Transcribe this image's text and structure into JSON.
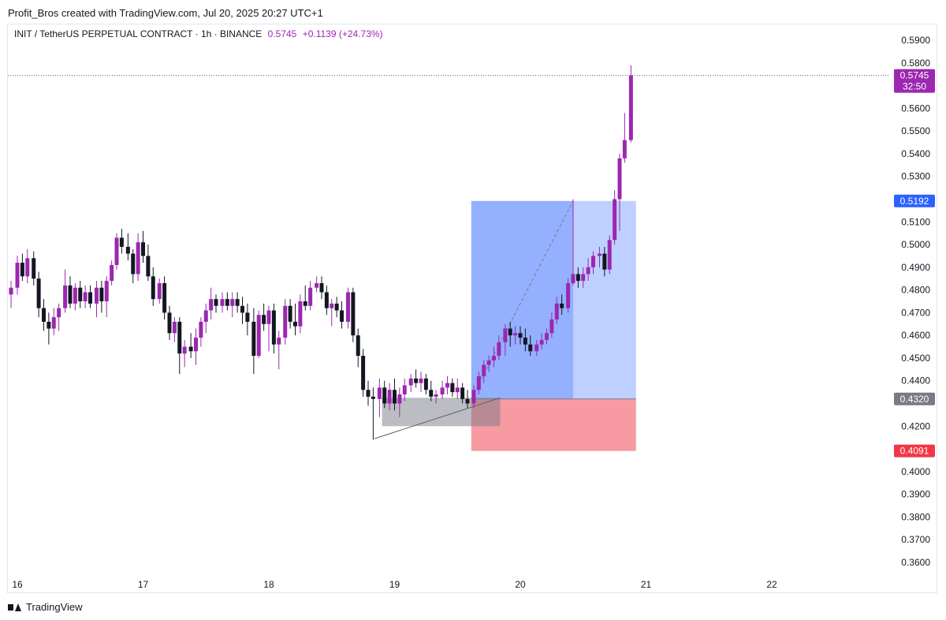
{
  "header": {
    "text": "Profit_Bros created with TradingView.com, Jul 20, 2025 20:27 UTC+1"
  },
  "legend": {
    "symbol": "INIT / TetherUS PERPETUAL CONTRACT · 1h · BINANCE",
    "price": "0.5745",
    "change": "+0.1139 (+24.73%)"
  },
  "footer": {
    "brand": "TradingView"
  },
  "colors": {
    "up": "#9c27b0",
    "down": "#131722",
    "target": "#2962ff",
    "stop": "#f23645",
    "entry": "#787b86"
  },
  "chart_data": {
    "type": "candlestick",
    "title": "",
    "xlabel": "",
    "ylabel": "",
    "ylim": [
      0.355,
      0.592
    ],
    "xlim": [
      16.0,
      23.05
    ],
    "x_ticks": [
      {
        "x": 16,
        "label": "16"
      },
      {
        "x": 17,
        "label": "17"
      },
      {
        "x": 18,
        "label": "18"
      },
      {
        "x": 19,
        "label": "19"
      },
      {
        "x": 20,
        "label": "20"
      },
      {
        "x": 21,
        "label": "21"
      },
      {
        "x": 22,
        "label": "22"
      }
    ],
    "y_ticks": [
      "0.5900",
      "0.5800",
      "0.5600",
      "0.5500",
      "0.5400",
      "0.5300",
      "0.5100",
      "0.5000",
      "0.4900",
      "0.4800",
      "0.4700",
      "0.4600",
      "0.4500",
      "0.4400",
      "0.4200",
      "0.4000",
      "0.3900",
      "0.3800",
      "0.3700",
      "0.3600"
    ],
    "candle_interval_days": 0.0417,
    "candles": [
      {
        "x": 15.95,
        "o": 0.478,
        "h": 0.484,
        "l": 0.472,
        "c": 0.481
      },
      {
        "x": 16.0,
        "o": 0.481,
        "h": 0.495,
        "l": 0.478,
        "c": 0.492
      },
      {
        "x": 16.04,
        "o": 0.492,
        "h": 0.496,
        "l": 0.484,
        "c": 0.486
      },
      {
        "x": 16.08,
        "o": 0.486,
        "h": 0.498,
        "l": 0.483,
        "c": 0.494
      },
      {
        "x": 16.13,
        "o": 0.494,
        "h": 0.497,
        "l": 0.482,
        "c": 0.485
      },
      {
        "x": 16.17,
        "o": 0.485,
        "h": 0.488,
        "l": 0.468,
        "c": 0.472
      },
      {
        "x": 16.21,
        "o": 0.472,
        "h": 0.476,
        "l": 0.462,
        "c": 0.466
      },
      {
        "x": 16.25,
        "o": 0.466,
        "h": 0.47,
        "l": 0.456,
        "c": 0.463
      },
      {
        "x": 16.29,
        "o": 0.463,
        "h": 0.472,
        "l": 0.46,
        "c": 0.468
      },
      {
        "x": 16.33,
        "o": 0.468,
        "h": 0.474,
        "l": 0.462,
        "c": 0.472
      },
      {
        "x": 16.38,
        "o": 0.472,
        "h": 0.489,
        "l": 0.47,
        "c": 0.482
      },
      {
        "x": 16.42,
        "o": 0.482,
        "h": 0.486,
        "l": 0.472,
        "c": 0.474
      },
      {
        "x": 16.46,
        "o": 0.474,
        "h": 0.483,
        "l": 0.471,
        "c": 0.481
      },
      {
        "x": 16.5,
        "o": 0.481,
        "h": 0.484,
        "l": 0.472,
        "c": 0.475
      },
      {
        "x": 16.54,
        "o": 0.475,
        "h": 0.482,
        "l": 0.472,
        "c": 0.479
      },
      {
        "x": 16.58,
        "o": 0.479,
        "h": 0.482,
        "l": 0.472,
        "c": 0.474
      },
      {
        "x": 16.63,
        "o": 0.474,
        "h": 0.484,
        "l": 0.468,
        "c": 0.481
      },
      {
        "x": 16.67,
        "o": 0.481,
        "h": 0.484,
        "l": 0.47,
        "c": 0.475
      },
      {
        "x": 16.71,
        "o": 0.475,
        "h": 0.486,
        "l": 0.468,
        "c": 0.484
      },
      {
        "x": 16.75,
        "o": 0.484,
        "h": 0.493,
        "l": 0.482,
        "c": 0.491
      },
      {
        "x": 16.79,
        "o": 0.491,
        "h": 0.505,
        "l": 0.489,
        "c": 0.503
      },
      {
        "x": 16.83,
        "o": 0.503,
        "h": 0.507,
        "l": 0.496,
        "c": 0.499
      },
      {
        "x": 16.88,
        "o": 0.499,
        "h": 0.505,
        "l": 0.493,
        "c": 0.496
      },
      {
        "x": 16.92,
        "o": 0.496,
        "h": 0.498,
        "l": 0.483,
        "c": 0.487
      },
      {
        "x": 16.96,
        "o": 0.487,
        "h": 0.505,
        "l": 0.484,
        "c": 0.501
      },
      {
        "x": 17.0,
        "o": 0.501,
        "h": 0.506,
        "l": 0.492,
        "c": 0.495
      },
      {
        "x": 17.04,
        "o": 0.495,
        "h": 0.5,
        "l": 0.484,
        "c": 0.486
      },
      {
        "x": 17.08,
        "o": 0.486,
        "h": 0.49,
        "l": 0.473,
        "c": 0.476
      },
      {
        "x": 17.13,
        "o": 0.476,
        "h": 0.485,
        "l": 0.474,
        "c": 0.483
      },
      {
        "x": 17.17,
        "o": 0.483,
        "h": 0.486,
        "l": 0.467,
        "c": 0.47
      },
      {
        "x": 17.21,
        "o": 0.47,
        "h": 0.473,
        "l": 0.458,
        "c": 0.461
      },
      {
        "x": 17.25,
        "o": 0.461,
        "h": 0.468,
        "l": 0.457,
        "c": 0.466
      },
      {
        "x": 17.29,
        "o": 0.466,
        "h": 0.468,
        "l": 0.443,
        "c": 0.452
      },
      {
        "x": 17.33,
        "o": 0.452,
        "h": 0.458,
        "l": 0.446,
        "c": 0.455
      },
      {
        "x": 17.38,
        "o": 0.455,
        "h": 0.461,
        "l": 0.45,
        "c": 0.453
      },
      {
        "x": 17.42,
        "o": 0.453,
        "h": 0.463,
        "l": 0.447,
        "c": 0.459
      },
      {
        "x": 17.46,
        "o": 0.459,
        "h": 0.468,
        "l": 0.455,
        "c": 0.466
      },
      {
        "x": 17.5,
        "o": 0.466,
        "h": 0.474,
        "l": 0.461,
        "c": 0.471
      },
      {
        "x": 17.54,
        "o": 0.471,
        "h": 0.481,
        "l": 0.467,
        "c": 0.476
      },
      {
        "x": 17.58,
        "o": 0.476,
        "h": 0.478,
        "l": 0.47,
        "c": 0.473
      },
      {
        "x": 17.63,
        "o": 0.473,
        "h": 0.479,
        "l": 0.47,
        "c": 0.476
      },
      {
        "x": 17.67,
        "o": 0.476,
        "h": 0.479,
        "l": 0.471,
        "c": 0.473
      },
      {
        "x": 17.71,
        "o": 0.473,
        "h": 0.479,
        "l": 0.468,
        "c": 0.476
      },
      {
        "x": 17.75,
        "o": 0.476,
        "h": 0.479,
        "l": 0.47,
        "c": 0.473
      },
      {
        "x": 17.79,
        "o": 0.473,
        "h": 0.477,
        "l": 0.465,
        "c": 0.47
      },
      {
        "x": 17.83,
        "o": 0.47,
        "h": 0.474,
        "l": 0.46,
        "c": 0.466
      },
      {
        "x": 17.88,
        "o": 0.466,
        "h": 0.472,
        "l": 0.443,
        "c": 0.451
      },
      {
        "x": 17.92,
        "o": 0.451,
        "h": 0.471,
        "l": 0.45,
        "c": 0.469
      },
      {
        "x": 17.96,
        "o": 0.469,
        "h": 0.474,
        "l": 0.462,
        "c": 0.465
      },
      {
        "x": 18.0,
        "o": 0.465,
        "h": 0.473,
        "l": 0.453,
        "c": 0.471
      },
      {
        "x": 18.04,
        "o": 0.471,
        "h": 0.474,
        "l": 0.452,
        "c": 0.456
      },
      {
        "x": 18.08,
        "o": 0.456,
        "h": 0.462,
        "l": 0.445,
        "c": 0.459
      },
      {
        "x": 18.13,
        "o": 0.459,
        "h": 0.476,
        "l": 0.456,
        "c": 0.473
      },
      {
        "x": 18.17,
        "o": 0.473,
        "h": 0.476,
        "l": 0.463,
        "c": 0.466
      },
      {
        "x": 18.21,
        "o": 0.466,
        "h": 0.474,
        "l": 0.46,
        "c": 0.464
      },
      {
        "x": 18.25,
        "o": 0.464,
        "h": 0.478,
        "l": 0.461,
        "c": 0.475
      },
      {
        "x": 18.29,
        "o": 0.475,
        "h": 0.482,
        "l": 0.471,
        "c": 0.473
      },
      {
        "x": 18.33,
        "o": 0.473,
        "h": 0.484,
        "l": 0.471,
        "c": 0.481
      },
      {
        "x": 18.38,
        "o": 0.481,
        "h": 0.486,
        "l": 0.479,
        "c": 0.483
      },
      {
        "x": 18.42,
        "o": 0.483,
        "h": 0.486,
        "l": 0.476,
        "c": 0.479
      },
      {
        "x": 18.46,
        "o": 0.479,
        "h": 0.482,
        "l": 0.469,
        "c": 0.472
      },
      {
        "x": 18.5,
        "o": 0.472,
        "h": 0.476,
        "l": 0.464,
        "c": 0.474
      },
      {
        "x": 18.54,
        "o": 0.474,
        "h": 0.477,
        "l": 0.468,
        "c": 0.471
      },
      {
        "x": 18.58,
        "o": 0.471,
        "h": 0.475,
        "l": 0.463,
        "c": 0.466
      },
      {
        "x": 18.63,
        "o": 0.466,
        "h": 0.481,
        "l": 0.463,
        "c": 0.479
      },
      {
        "x": 18.67,
        "o": 0.479,
        "h": 0.481,
        "l": 0.457,
        "c": 0.46
      },
      {
        "x": 18.71,
        "o": 0.46,
        "h": 0.463,
        "l": 0.446,
        "c": 0.451
      },
      {
        "x": 18.75,
        "o": 0.451,
        "h": 0.454,
        "l": 0.433,
        "c": 0.436
      },
      {
        "x": 18.79,
        "o": 0.436,
        "h": 0.44,
        "l": 0.429,
        "c": 0.433
      },
      {
        "x": 18.83,
        "o": 0.433,
        "h": 0.437,
        "l": 0.414,
        "c": 0.432
      },
      {
        "x": 18.88,
        "o": 0.432,
        "h": 0.441,
        "l": 0.424,
        "c": 0.437
      },
      {
        "x": 18.92,
        "o": 0.437,
        "h": 0.44,
        "l": 0.428,
        "c": 0.43
      },
      {
        "x": 18.96,
        "o": 0.43,
        "h": 0.439,
        "l": 0.427,
        "c": 0.436
      },
      {
        "x": 19.0,
        "o": 0.436,
        "h": 0.441,
        "l": 0.427,
        "c": 0.43
      },
      {
        "x": 19.04,
        "o": 0.43,
        "h": 0.437,
        "l": 0.424,
        "c": 0.434
      },
      {
        "x": 19.08,
        "o": 0.434,
        "h": 0.441,
        "l": 0.431,
        "c": 0.438
      },
      {
        "x": 19.13,
        "o": 0.438,
        "h": 0.443,
        "l": 0.435,
        "c": 0.441
      },
      {
        "x": 19.17,
        "o": 0.441,
        "h": 0.445,
        "l": 0.437,
        "c": 0.439
      },
      {
        "x": 19.21,
        "o": 0.439,
        "h": 0.444,
        "l": 0.435,
        "c": 0.441
      },
      {
        "x": 19.25,
        "o": 0.441,
        "h": 0.443,
        "l": 0.434,
        "c": 0.436
      },
      {
        "x": 19.29,
        "o": 0.436,
        "h": 0.44,
        "l": 0.431,
        "c": 0.433
      },
      {
        "x": 19.33,
        "o": 0.433,
        "h": 0.436,
        "l": 0.43,
        "c": 0.434
      },
      {
        "x": 19.38,
        "o": 0.434,
        "h": 0.44,
        "l": 0.432,
        "c": 0.437
      },
      {
        "x": 19.42,
        "o": 0.437,
        "h": 0.442,
        "l": 0.434,
        "c": 0.439
      },
      {
        "x": 19.46,
        "o": 0.439,
        "h": 0.441,
        "l": 0.433,
        "c": 0.435
      },
      {
        "x": 19.5,
        "o": 0.435,
        "h": 0.441,
        "l": 0.432,
        "c": 0.437
      },
      {
        "x": 19.54,
        "o": 0.437,
        "h": 0.439,
        "l": 0.43,
        "c": 0.432
      },
      {
        "x": 19.58,
        "o": 0.432,
        "h": 0.436,
        "l": 0.428,
        "c": 0.43
      },
      {
        "x": 19.63,
        "o": 0.43,
        "h": 0.438,
        "l": 0.428,
        "c": 0.436
      },
      {
        "x": 19.67,
        "o": 0.436,
        "h": 0.444,
        "l": 0.434,
        "c": 0.442
      },
      {
        "x": 19.71,
        "o": 0.442,
        "h": 0.449,
        "l": 0.439,
        "c": 0.447
      },
      {
        "x": 19.75,
        "o": 0.447,
        "h": 0.451,
        "l": 0.444,
        "c": 0.449
      },
      {
        "x": 19.79,
        "o": 0.449,
        "h": 0.455,
        "l": 0.446,
        "c": 0.451
      },
      {
        "x": 19.83,
        "o": 0.451,
        "h": 0.46,
        "l": 0.449,
        "c": 0.457
      },
      {
        "x": 19.88,
        "o": 0.457,
        "h": 0.465,
        "l": 0.451,
        "c": 0.463
      },
      {
        "x": 19.92,
        "o": 0.463,
        "h": 0.466,
        "l": 0.455,
        "c": 0.46
      },
      {
        "x": 19.96,
        "o": 0.46,
        "h": 0.464,
        "l": 0.456,
        "c": 0.461
      },
      {
        "x": 20.0,
        "o": 0.461,
        "h": 0.464,
        "l": 0.456,
        "c": 0.459
      },
      {
        "x": 20.04,
        "o": 0.459,
        "h": 0.463,
        "l": 0.453,
        "c": 0.456
      },
      {
        "x": 20.08,
        "o": 0.456,
        "h": 0.46,
        "l": 0.451,
        "c": 0.453
      },
      {
        "x": 20.13,
        "o": 0.453,
        "h": 0.458,
        "l": 0.451,
        "c": 0.456
      },
      {
        "x": 20.17,
        "o": 0.456,
        "h": 0.461,
        "l": 0.454,
        "c": 0.458
      },
      {
        "x": 20.21,
        "o": 0.458,
        "h": 0.463,
        "l": 0.456,
        "c": 0.461
      },
      {
        "x": 20.25,
        "o": 0.461,
        "h": 0.47,
        "l": 0.459,
        "c": 0.467
      },
      {
        "x": 20.29,
        "o": 0.467,
        "h": 0.477,
        "l": 0.465,
        "c": 0.474
      },
      {
        "x": 20.33,
        "o": 0.474,
        "h": 0.478,
        "l": 0.469,
        "c": 0.472
      },
      {
        "x": 20.38,
        "o": 0.472,
        "h": 0.485,
        "l": 0.47,
        "c": 0.483
      },
      {
        "x": 20.42,
        "o": 0.483,
        "h": 0.52,
        "l": 0.482,
        "c": 0.487
      },
      {
        "x": 20.46,
        "o": 0.487,
        "h": 0.49,
        "l": 0.481,
        "c": 0.484
      },
      {
        "x": 20.5,
        "o": 0.484,
        "h": 0.49,
        "l": 0.481,
        "c": 0.487
      },
      {
        "x": 20.54,
        "o": 0.487,
        "h": 0.494,
        "l": 0.484,
        "c": 0.49
      },
      {
        "x": 20.58,
        "o": 0.49,
        "h": 0.497,
        "l": 0.487,
        "c": 0.495
      },
      {
        "x": 20.63,
        "o": 0.495,
        "h": 0.499,
        "l": 0.49,
        "c": 0.496
      },
      {
        "x": 20.67,
        "o": 0.496,
        "h": 0.499,
        "l": 0.486,
        "c": 0.489
      },
      {
        "x": 20.71,
        "o": 0.489,
        "h": 0.504,
        "l": 0.487,
        "c": 0.502
      },
      {
        "x": 20.75,
        "o": 0.502,
        "h": 0.524,
        "l": 0.5,
        "c": 0.52
      },
      {
        "x": 20.79,
        "o": 0.52,
        "h": 0.54,
        "l": 0.506,
        "c": 0.538
      },
      {
        "x": 20.83,
        "o": 0.538,
        "h": 0.558,
        "l": 0.536,
        "c": 0.546
      },
      {
        "x": 20.88,
        "o": 0.546,
        "h": 0.579,
        "l": 0.545,
        "c": 0.5745
      }
    ],
    "position": {
      "entry": 0.432,
      "target": 0.5192,
      "stop": 0.4091,
      "x_start": 19.61,
      "x_end": 20.92,
      "x_fill": 20.42
    },
    "price_tags": [
      {
        "value": 0.5745,
        "label": "0.5745",
        "sub": "32:50",
        "role": "last"
      },
      {
        "value": 0.5192,
        "label": "0.5192",
        "role": "target"
      },
      {
        "value": 0.432,
        "label": "0.4320",
        "role": "entry"
      },
      {
        "value": 0.4091,
        "label": "0.4091",
        "role": "stop"
      }
    ],
    "gray_box": {
      "x0": 18.9,
      "x1": 19.84,
      "y0": 0.42,
      "y1": 0.4325
    },
    "trend_line": {
      "x0": 18.84,
      "y0": 0.4145,
      "x1": 19.84,
      "y1": 0.4325
    },
    "grid": false,
    "legend_position": "top-left"
  }
}
